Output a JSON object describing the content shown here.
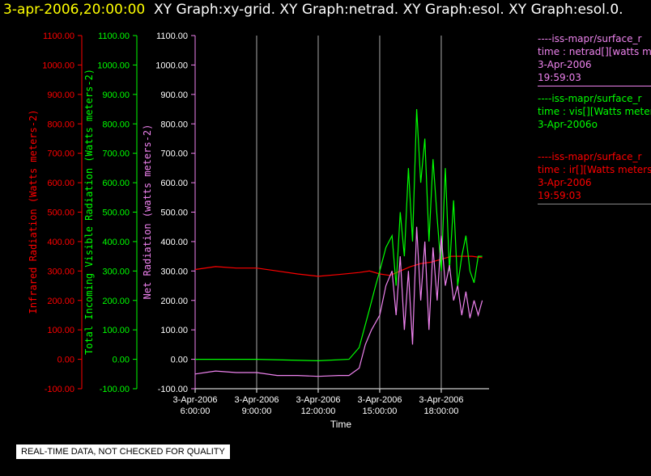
{
  "header": {
    "timestamp": "3-apr-2006,20:00:00",
    "graphs": "XY Graph:xy-grid.  XY Graph:netrad.  XY Graph:esol.  XY Graph:esol.0."
  },
  "legend": [
    {
      "source": "----iss-mapr/surface_r",
      "field": "time : netrad[][watts m",
      "date": "3-Apr-2006",
      "time": "19:59:03",
      "color": "#ee82ee"
    },
    {
      "source": "----iss-mapr/surface_r",
      "field": "time : vis[][Watts meter",
      "date": "3-Apr-2006o",
      "time": "",
      "color": "#00ff00"
    },
    {
      "source": "----iss-mapr/surface_r",
      "field": "time : ir[][Watts meters",
      "date": "3-Apr-2006",
      "time": "19:59:03",
      "color": "#ff0000"
    }
  ],
  "footer": {
    "quality_note": "REAL-TIME DATA, NOT CHECKED FOR QUALITY"
  },
  "chart_data": {
    "type": "line",
    "xlabel": "Time",
    "x_ticks": [
      {
        "hour": 6,
        "date": "3-Apr-2006",
        "time": "6:00:00"
      },
      {
        "hour": 9,
        "date": "3-Apr-2006",
        "time": "9:00:00"
      },
      {
        "hour": 12,
        "date": "3-Apr-2006",
        "time": "12:00:00"
      },
      {
        "hour": 15,
        "date": "3-Apr-2006",
        "time": "15:00:00"
      },
      {
        "hour": 18,
        "date": "3-Apr-2006",
        "time": "18:00:00"
      }
    ],
    "xlim_hours": [
      6,
      20.2
    ],
    "ylim": [
      -100,
      1100
    ],
    "y_ticks": [
      "-100.00",
      "0.00",
      "100.00",
      "200.00",
      "300.00",
      "400.00",
      "500.00",
      "600.00",
      "700.00",
      "800.00",
      "900.00",
      "1000.00",
      "1100.00"
    ],
    "axes": [
      {
        "label": "Infrared Radiation (Watts meters-2)",
        "color": "#ff0000"
      },
      {
        "label": "Total Incoming Visible Radiation (Watts meters-2)",
        "color": "#00ff00"
      },
      {
        "label": "Net Radiation (watts meters-2)",
        "color": "#ee82ee"
      }
    ],
    "grid": "vertical",
    "series": [
      {
        "name": "ir",
        "color": "#ff0000",
        "points": [
          [
            6,
            305
          ],
          [
            7,
            315
          ],
          [
            8,
            310
          ],
          [
            9,
            310
          ],
          [
            10,
            300
          ],
          [
            11,
            290
          ],
          [
            12,
            282
          ],
          [
            13,
            288
          ],
          [
            14,
            295
          ],
          [
            14.5,
            300
          ],
          [
            15,
            290
          ],
          [
            15.5,
            285
          ],
          [
            16,
            300
          ],
          [
            16.5,
            315
          ],
          [
            17,
            325
          ],
          [
            17.5,
            330
          ],
          [
            18,
            340
          ],
          [
            18.5,
            350
          ],
          [
            19,
            350
          ],
          [
            19.5,
            350
          ],
          [
            20,
            345
          ]
        ]
      },
      {
        "name": "vis",
        "color": "#00ff00",
        "points": [
          [
            6,
            0
          ],
          [
            9,
            0
          ],
          [
            12,
            -5
          ],
          [
            13.5,
            0
          ],
          [
            14,
            40
          ],
          [
            14.5,
            170
          ],
          [
            14.8,
            250
          ],
          [
            15,
            300
          ],
          [
            15.3,
            380
          ],
          [
            15.6,
            420
          ],
          [
            15.8,
            250
          ],
          [
            16,
            500
          ],
          [
            16.2,
            350
          ],
          [
            16.4,
            650
          ],
          [
            16.6,
            400
          ],
          [
            16.8,
            850
          ],
          [
            17,
            600
          ],
          [
            17.2,
            750
          ],
          [
            17.4,
            400
          ],
          [
            17.6,
            680
          ],
          [
            17.8,
            480
          ],
          [
            18,
            300
          ],
          [
            18.2,
            650
          ],
          [
            18.4,
            300
          ],
          [
            18.6,
            540
          ],
          [
            18.8,
            250
          ],
          [
            19,
            350
          ],
          [
            19.2,
            420
          ],
          [
            19.4,
            300
          ],
          [
            19.6,
            260
          ],
          [
            19.8,
            350
          ],
          [
            20,
            350
          ]
        ]
      },
      {
        "name": "netrad",
        "color": "#ee82ee",
        "points": [
          [
            6,
            -50
          ],
          [
            7,
            -40
          ],
          [
            8,
            -45
          ],
          [
            9,
            -45
          ],
          [
            10,
            -55
          ],
          [
            11,
            -55
          ],
          [
            12,
            -58
          ],
          [
            13,
            -55
          ],
          [
            13.5,
            -55
          ],
          [
            14,
            -30
          ],
          [
            14.3,
            50
          ],
          [
            14.6,
            100
          ],
          [
            15,
            150
          ],
          [
            15.3,
            250
          ],
          [
            15.6,
            300
          ],
          [
            15.8,
            150
          ],
          [
            16,
            350
          ],
          [
            16.2,
            100
          ],
          [
            16.4,
            300
          ],
          [
            16.6,
            50
          ],
          [
            16.8,
            450
          ],
          [
            17,
            200
          ],
          [
            17.2,
            400
          ],
          [
            17.4,
            100
          ],
          [
            17.6,
            380
          ],
          [
            17.8,
            200
          ],
          [
            18,
            420
          ],
          [
            18.2,
            250
          ],
          [
            18.4,
            320
          ],
          [
            18.6,
            200
          ],
          [
            18.8,
            250
          ],
          [
            19,
            150
          ],
          [
            19.2,
            230
          ],
          [
            19.4,
            140
          ],
          [
            19.6,
            200
          ],
          [
            19.8,
            150
          ],
          [
            20,
            200
          ]
        ]
      }
    ]
  }
}
